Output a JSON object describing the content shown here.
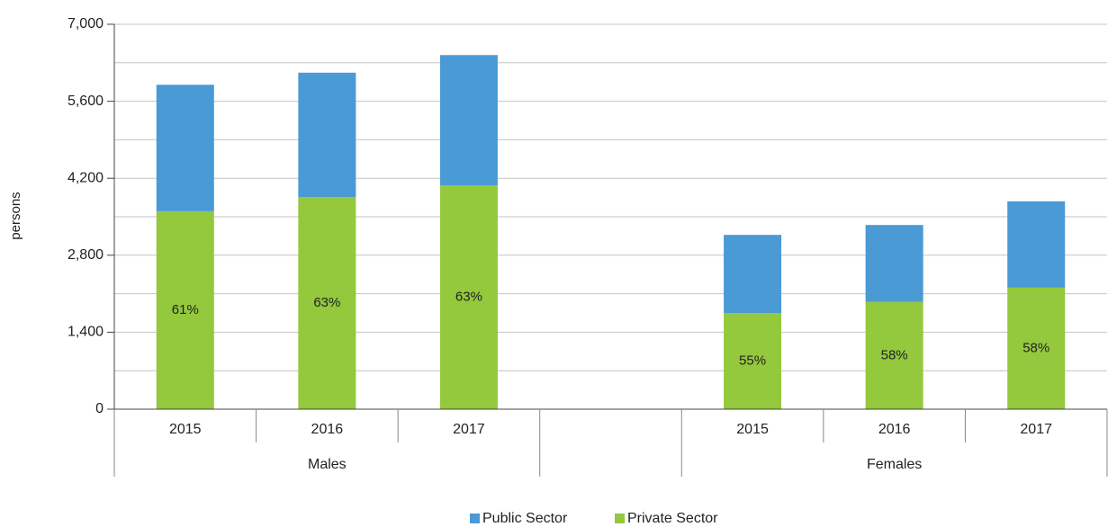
{
  "chart_data": {
    "type": "stacked_bar",
    "y_label": "persons",
    "categories": [
      "2015",
      "2016",
      "2017",
      null,
      "2015",
      "2016",
      "2017"
    ],
    "groups": [
      {
        "label": "Males",
        "start": 0,
        "end": 3
      },
      {
        "label": "Females",
        "start": 4,
        "end": 7
      }
    ],
    "series": [
      {
        "name": "Public Sector",
        "color": "#4a9ad5",
        "values": [
          2300,
          2260,
          2370,
          null,
          1420,
          1400,
          1570
        ]
      },
      {
        "name": "Private Sector",
        "color": "#94c83d",
        "values": [
          3600,
          3860,
          4070,
          null,
          1750,
          1950,
          2210
        ],
        "share_labels": [
          "61%",
          "63%",
          "63%",
          null,
          "55%",
          "58%",
          "58%"
        ]
      }
    ],
    "ylim": [
      0,
      7000
    ],
    "yticks": [
      0,
      {
        "value": 1400,
        "label": "1,400"
      },
      {
        "value": 2800,
        "label": "2,800"
      },
      {
        "value": 4200,
        "label": "4,200"
      },
      {
        "value": 5600,
        "label": "5,600"
      },
      {
        "value": 7000,
        "label": "7,000"
      }
    ],
    "yminor": [
      700,
      2100,
      3500,
      4900,
      6300
    ],
    "grid": true,
    "legend": "bottom"
  }
}
